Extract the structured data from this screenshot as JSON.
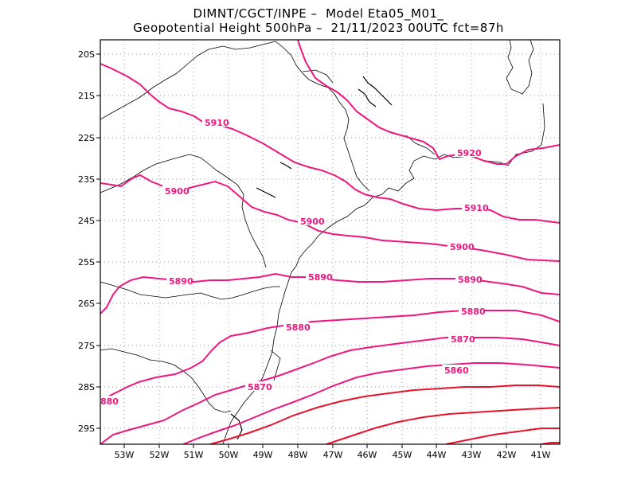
{
  "header": {
    "line1": "DIMNT/CGCT/INPE –  Model Eta05_M01_",
    "line2": "Geopotential Height 500hPa –  21/11/2023 00UTC fct=87h"
  },
  "map": {
    "lon_range": [
      -53.6,
      -40.4
    ],
    "lat_range": [
      -29.4,
      -19.7
    ],
    "x_ticks": [
      "53W",
      "52W",
      "51W",
      "50W",
      "49W",
      "48W",
      "47W",
      "46W",
      "45W",
      "44W",
      "43W",
      "42W",
      "41W"
    ],
    "y_ticks": [
      "20S",
      "21S",
      "22S",
      "23S",
      "24S",
      "25S",
      "26S",
      "27S",
      "28S",
      "29S"
    ],
    "grid": "dotted",
    "colors": {
      "contour_high": "#ee1780",
      "contour_low": "#e8122c",
      "coast": "#000000"
    },
    "contour_labels": [
      "5920",
      "5910",
      "5910",
      "5900",
      "5900",
      "5900",
      "5890",
      "5890",
      "5890",
      "5880",
      "5880",
      "5870",
      "5870",
      "5860",
      "880"
    ]
  }
}
